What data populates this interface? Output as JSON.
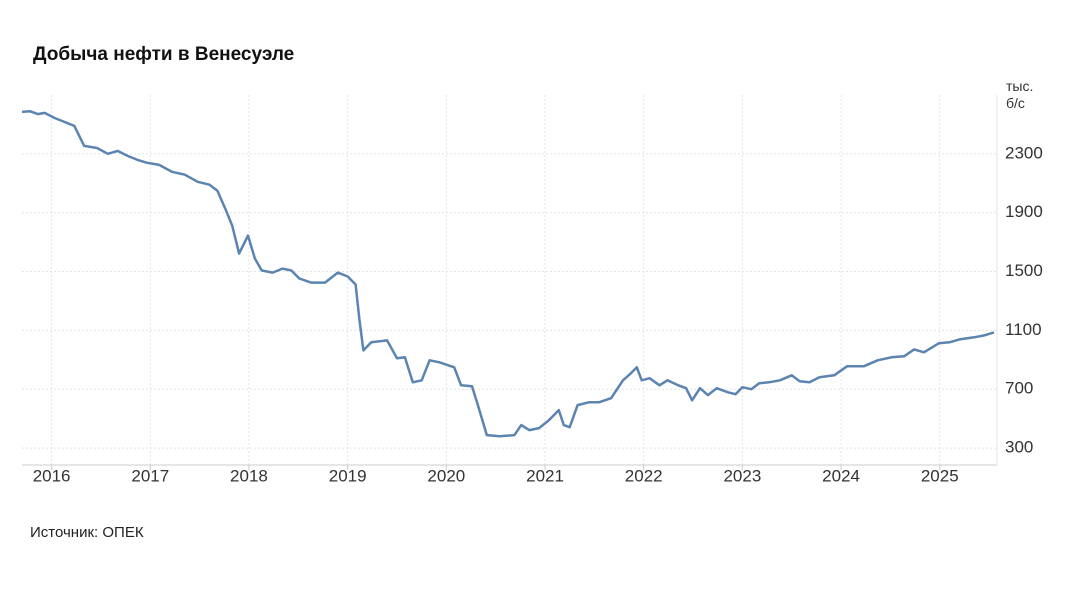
{
  "chart_data": {
    "type": "line",
    "title": "Добыча нефти в Венесуэле",
    "y_unit": "тыс. б/с",
    "source": "Источник: ОПЕК",
    "color": "#5b84b1",
    "grid": true,
    "xlim": [
      2015.7,
      2025.58
    ],
    "xticks": [
      2016,
      2017,
      2018,
      2019,
      2020,
      2021,
      2022,
      2023,
      2024,
      2025
    ],
    "ylim": [
      185,
      2700
    ],
    "yticks": [
      300,
      700,
      1100,
      1500,
      1900,
      2300
    ],
    "x": [
      2015.7,
      2015.78,
      2015.86,
      2015.93,
      2016.03,
      2016.13,
      2016.23,
      2016.33,
      2016.46,
      2016.57,
      2016.67,
      2016.77,
      2016.87,
      2016.97,
      2017.09,
      2017.22,
      2017.35,
      2017.48,
      2017.6,
      2017.68,
      2017.76,
      2017.83,
      2017.9,
      2017.99,
      2018.06,
      2018.13,
      2018.24,
      2018.34,
      2018.43,
      2018.51,
      2018.63,
      2018.77,
      2018.9,
      2019.0,
      2019.08,
      2019.12,
      2019.16,
      2019.24,
      2019.4,
      2019.5,
      2019.58,
      2019.66,
      2019.75,
      2019.83,
      2019.93,
      2020.08,
      2020.15,
      2020.26,
      2020.32,
      2020.41,
      2020.54,
      2020.69,
      2020.76,
      2020.84,
      2020.94,
      2021.04,
      2021.14,
      2021.19,
      2021.25,
      2021.33,
      2021.45,
      2021.55,
      2021.67,
      2021.79,
      2021.86,
      2021.93,
      2021.98,
      2022.06,
      2022.16,
      2022.24,
      2022.35,
      2022.43,
      2022.49,
      2022.57,
      2022.65,
      2022.74,
      2022.85,
      2022.93,
      2023.0,
      2023.09,
      2023.17,
      2023.27,
      2023.38,
      2023.5,
      2023.58,
      2023.68,
      2023.78,
      2023.93,
      2024.06,
      2024.23,
      2024.37,
      2024.51,
      2024.64,
      2024.74,
      2024.84,
      2024.99,
      2025.1,
      2025.2,
      2025.35,
      2025.45,
      2025.55
    ],
    "values": [
      2585,
      2590,
      2570,
      2578,
      2544,
      2517,
      2490,
      2354,
      2340,
      2300,
      2320,
      2286,
      2259,
      2239,
      2225,
      2178,
      2158,
      2110,
      2090,
      2049,
      1927,
      1812,
      1622,
      1744,
      1588,
      1507,
      1493,
      1520,
      1507,
      1453,
      1425,
      1425,
      1493,
      1466,
      1412,
      1168,
      964,
      1019,
      1032,
      910,
      917,
      747,
      761,
      897,
      883,
      849,
      727,
      720,
      592,
      388,
      381,
      388,
      456,
      422,
      436,
      490,
      558,
      456,
      442,
      592,
      612,
      612,
      639,
      761,
      802,
      849,
      761,
      775,
      727,
      761,
      727,
      707,
      625,
      707,
      660,
      707,
      680,
      666,
      714,
      700,
      741,
      747,
      761,
      795,
      754,
      747,
      781,
      795,
      856,
      856,
      897,
      917,
      924,
      971,
      951,
      1012,
      1019,
      1039,
      1053,
      1066,
      1086
    ]
  }
}
